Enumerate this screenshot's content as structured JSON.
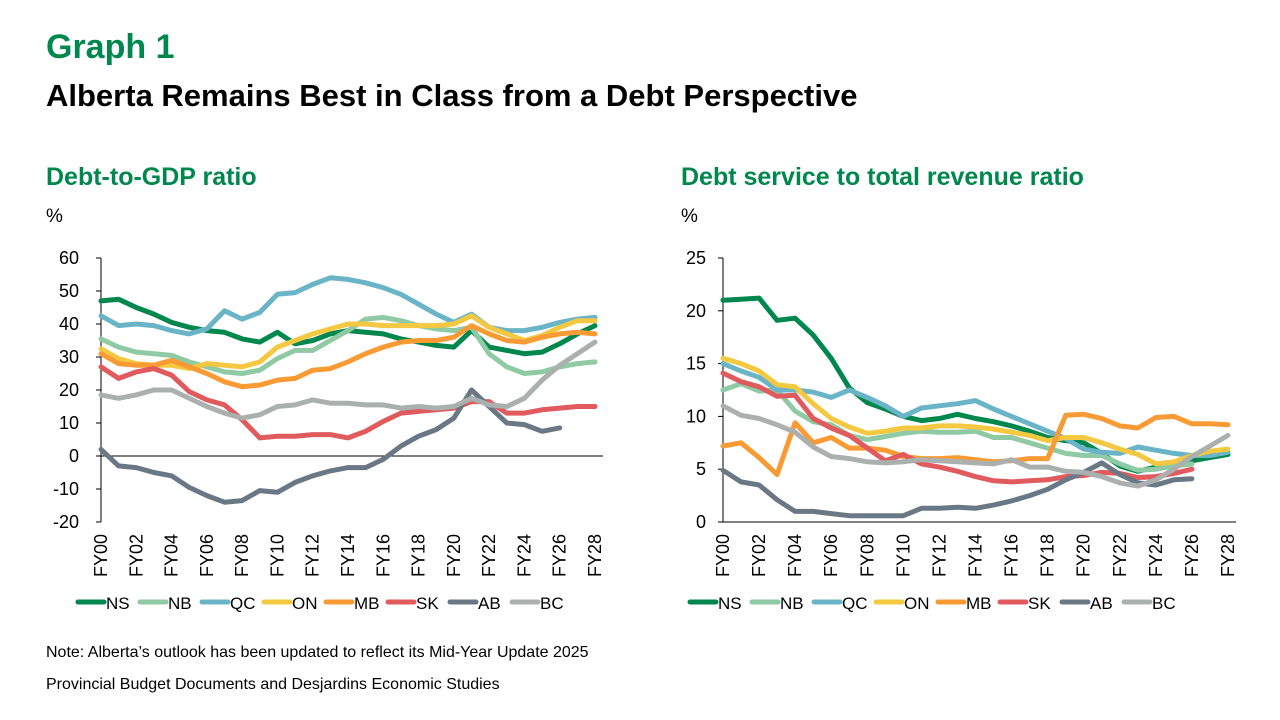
{
  "header": {
    "graph_number": "Graph 1",
    "title": "Alberta Remains Best in Class from a Debt Perspective"
  },
  "notes": {
    "note": "Note: Alberta’s outlook has been updated to reflect its Mid-Year Update 2025",
    "source": "Provincial Budget Documents and Desjardins Economic Studies"
  },
  "legend_colors": {
    "NS": "#00874e",
    "NB": "#8fcaa4",
    "QC": "#6ab4c8",
    "ON": "#f5c842",
    "MB": "#f99b35",
    "SK": "#e05a5e",
    "AB": "#6a7886",
    "BC": "#a9b0ae"
  },
  "chart_data": [
    {
      "type": "line",
      "title": "Debt-to-GDP ratio",
      "ylabel": "%",
      "xlabel": "",
      "ylim": [
        -20,
        60
      ],
      "yticks": [
        60,
        50,
        40,
        30,
        20,
        10,
        0,
        -10,
        -20
      ],
      "x": [
        "FY00",
        "FY01",
        "FY02",
        "FY03",
        "FY04",
        "FY05",
        "FY06",
        "FY07",
        "FY08",
        "FY09",
        "FY10",
        "FY11",
        "FY12",
        "FY13",
        "FY14",
        "FY15",
        "FY16",
        "FY17",
        "FY18",
        "FY19",
        "FY20",
        "FY21",
        "FY22",
        "FY23",
        "FY24",
        "FY25",
        "FY26",
        "FY27",
        "FY28"
      ],
      "xticks": [
        "FY00",
        "FY02",
        "FY04",
        "FY06",
        "FY08",
        "FY10",
        "FY12",
        "FY14",
        "FY16",
        "FY18",
        "FY20",
        "FY22",
        "FY24",
        "FY26",
        "FY28"
      ],
      "grid": false,
      "legend": "bottom",
      "series": [
        {
          "name": "NS",
          "values": [
            47,
            47.5,
            45,
            43,
            40.5,
            39,
            38,
            37.5,
            35.5,
            34.5,
            37.5,
            34,
            35,
            37,
            38,
            37.5,
            37,
            35.5,
            34.5,
            33.5,
            33,
            38,
            33,
            32,
            31,
            31.5,
            34,
            37,
            39.5
          ]
        },
        {
          "name": "NB",
          "values": [
            35.5,
            33,
            31.5,
            31,
            30.5,
            28.5,
            27,
            25.5,
            25,
            26,
            29.5,
            32,
            32,
            35,
            38,
            41.5,
            42,
            41,
            39.5,
            38.5,
            38,
            39,
            31,
            27,
            25,
            25.5,
            27,
            28,
            28.5
          ]
        },
        {
          "name": "QC",
          "values": [
            42.5,
            39.5,
            40,
            39.5,
            38,
            37,
            38.5,
            44,
            41.5,
            43.5,
            49,
            49.5,
            52,
            54,
            53.5,
            52.5,
            51,
            49,
            46,
            43,
            40.5,
            43,
            39,
            38,
            38,
            39,
            40.5,
            41.5,
            42
          ]
        },
        {
          "name": "ON",
          "values": [
            32.5,
            29.5,
            28,
            27.5,
            27.5,
            26.5,
            28,
            27.5,
            27,
            28.5,
            33,
            35,
            37,
            38.5,
            40,
            40,
            39.5,
            39.5,
            39.5,
            39.5,
            40,
            42.5,
            39,
            37,
            35,
            36.5,
            39,
            41,
            41
          ]
        },
        {
          "name": "MB",
          "values": [
            31,
            28,
            27.5,
            27.5,
            29,
            27,
            25,
            22.5,
            21,
            21.5,
            23,
            23.5,
            26,
            26.5,
            28.5,
            31,
            33,
            34.5,
            35,
            35,
            36,
            39.5,
            37,
            35,
            34.5,
            36,
            37,
            37.5,
            37
          ]
        },
        {
          "name": "SK",
          "values": [
            27,
            23.5,
            25.5,
            26.5,
            24.5,
            19.5,
            17,
            15.5,
            11,
            5.5,
            6,
            6,
            6.5,
            6.5,
            5.5,
            7.5,
            10.5,
            13,
            13.5,
            14,
            14.5,
            16.5,
            16.5,
            13,
            13,
            14,
            14.5,
            15,
            15
          ]
        },
        {
          "name": "AB",
          "values": [
            2,
            -3,
            -3.5,
            -5,
            -6,
            -9.5,
            -12,
            -14,
            -13.5,
            -10.5,
            -11,
            -8,
            -6,
            -4.5,
            -3.5,
            -3.5,
            -1,
            3,
            6,
            8,
            11.5,
            20,
            15,
            10,
            9.5,
            7.5,
            8.5,
            null,
            null
          ]
        },
        {
          "name": "BC",
          "values": [
            18.5,
            17.5,
            18.5,
            20,
            20,
            17.5,
            15,
            13,
            11.5,
            12.5,
            15,
            15.5,
            17,
            16,
            16,
            15.5,
            15.5,
            14.5,
            15,
            14.5,
            15,
            17.5,
            15.5,
            15,
            17.5,
            23,
            27.5,
            31,
            34.5
          ]
        }
      ]
    },
    {
      "type": "line",
      "title": "Debt service to total revenue ratio",
      "ylabel": "%",
      "xlabel": "",
      "ylim": [
        0,
        25
      ],
      "yticks": [
        25,
        20,
        15,
        10,
        5,
        0
      ],
      "x": [
        "FY00",
        "FY01",
        "FY02",
        "FY03",
        "FY04",
        "FY05",
        "FY06",
        "FY07",
        "FY08",
        "FY09",
        "FY10",
        "FY11",
        "FY12",
        "FY13",
        "FY14",
        "FY15",
        "FY16",
        "FY17",
        "FY18",
        "FY19",
        "FY20",
        "FY21",
        "FY22",
        "FY23",
        "FY24",
        "FY25",
        "FY26",
        "FY27",
        "FY28"
      ],
      "xticks": [
        "FY00",
        "FY02",
        "FY04",
        "FY06",
        "FY08",
        "FY10",
        "FY12",
        "FY14",
        "FY16",
        "FY18",
        "FY20",
        "FY22",
        "FY24",
        "FY26",
        "FY28"
      ],
      "grid": false,
      "legend": "bottom",
      "series": [
        {
          "name": "NS",
          "values": [
            21,
            21.1,
            21.2,
            19.1,
            19.3,
            17.7,
            15.5,
            12.7,
            11.3,
            10.7,
            10,
            9.6,
            9.8,
            10.2,
            9.8,
            9.5,
            9.1,
            8.6,
            8,
            7.7,
            7.5,
            6.5,
            5.3,
            4.8,
            5.2,
            5.5,
            5.8,
            6.1,
            6.4
          ]
        },
        {
          "name": "NB",
          "values": [
            12.5,
            13.1,
            12.4,
            12.5,
            10.5,
            9.5,
            9.2,
            8.2,
            7.8,
            8.1,
            8.4,
            8.6,
            8.5,
            8.5,
            8.6,
            8,
            8,
            7.5,
            7,
            6.5,
            6.3,
            6.3,
            5.5,
            4.9,
            5,
            5.3,
            5.5,
            null,
            null
          ]
        },
        {
          "name": "QC",
          "values": [
            15,
            14.3,
            13.7,
            12.5,
            12.5,
            12.3,
            11.8,
            12.5,
            11.8,
            11,
            10,
            10.8,
            11,
            11.2,
            11.5,
            10.7,
            10,
            9.3,
            8.6,
            7.9,
            6.9,
            6.6,
            6.5,
            7.1,
            6.8,
            6.5,
            6.3,
            6.3,
            6.6
          ]
        },
        {
          "name": "ON",
          "values": [
            15.5,
            15,
            14.3,
            13,
            12.8,
            11.2,
            9.8,
            9,
            8.4,
            8.6,
            8.9,
            8.9,
            9.1,
            9.1,
            9,
            8.8,
            8.5,
            8.2,
            7.7,
            8,
            8,
            7.5,
            6.9,
            6.4,
            5.5,
            5.7,
            6.3,
            6.7,
            6.9
          ]
        },
        {
          "name": "MB",
          "values": [
            7.2,
            7.5,
            6.1,
            4.5,
            9.4,
            7.5,
            8,
            7,
            7,
            6.8,
            6.2,
            6,
            6,
            6.1,
            5.9,
            5.7,
            5.8,
            6,
            6,
            10.1,
            10.2,
            9.8,
            9.1,
            8.9,
            9.9,
            10,
            9.3,
            9.3,
            9.2
          ]
        },
        {
          "name": "SK",
          "values": [
            14.1,
            13.3,
            12.8,
            11.9,
            12,
            9.8,
            8.9,
            8.2,
            7,
            5.8,
            6.4,
            5.5,
            5.2,
            4.8,
            4.3,
            3.9,
            3.8,
            3.9,
            4,
            4.3,
            4.4,
            4.7,
            4.6,
            4.2,
            4.3,
            4.6,
            5,
            null,
            null
          ]
        },
        {
          "name": "AB",
          "values": [
            4.9,
            3.8,
            3.5,
            2.1,
            1,
            1,
            0.8,
            0.6,
            0.6,
            0.6,
            0.6,
            1.3,
            1.3,
            1.4,
            1.3,
            1.6,
            2,
            2.5,
            3.1,
            4,
            4.7,
            5.6,
            4.5,
            3.7,
            3.5,
            4,
            4.1,
            null,
            null
          ]
        },
        {
          "name": "BC",
          "values": [
            11,
            10.1,
            9.8,
            9.2,
            8.5,
            7.1,
            6.2,
            6,
            5.7,
            5.6,
            5.7,
            5.9,
            5.8,
            5.7,
            5.6,
            5.5,
            5.9,
            5.2,
            5.2,
            4.8,
            4.7,
            4.3,
            3.7,
            3.4,
            4,
            5,
            6.2,
            7.2,
            8.2
          ]
        }
      ]
    }
  ]
}
